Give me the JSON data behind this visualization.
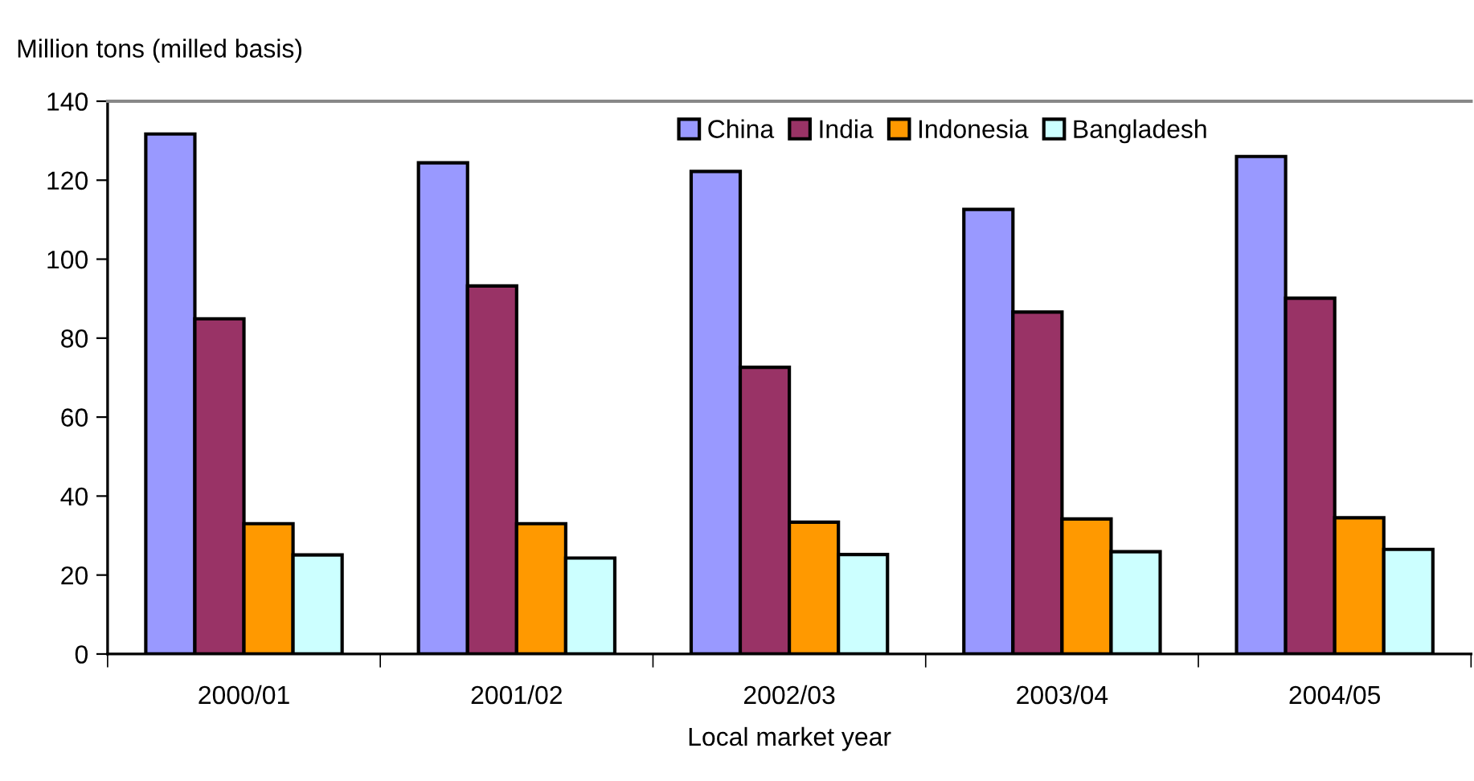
{
  "chart_data": {
    "type": "bar",
    "ylabel": "Million tons (milled basis)",
    "xlabel": "Local market year",
    "categories": [
      "2000/01",
      "2001/02",
      "2002/03",
      "2003/04",
      "2004/05"
    ],
    "series": [
      {
        "name": "China",
        "color": "#9999ff",
        "values": [
          131.7,
          124.4,
          122.2,
          112.6,
          126.0
        ]
      },
      {
        "name": "India",
        "color": "#993366",
        "values": [
          84.9,
          93.2,
          72.6,
          86.6,
          90.1
        ]
      },
      {
        "name": "Indonesia",
        "color": "#ff9900",
        "values": [
          33.0,
          33.0,
          33.4,
          34.2,
          34.5
        ]
      },
      {
        "name": "Bangladesh",
        "color": "#ccffff",
        "values": [
          25.1,
          24.3,
          25.2,
          25.9,
          26.5
        ]
      }
    ],
    "ylim": [
      0,
      140
    ],
    "yticks": [
      0,
      20,
      40,
      60,
      80,
      100,
      120,
      140
    ],
    "grid": false,
    "legend": "top right"
  }
}
